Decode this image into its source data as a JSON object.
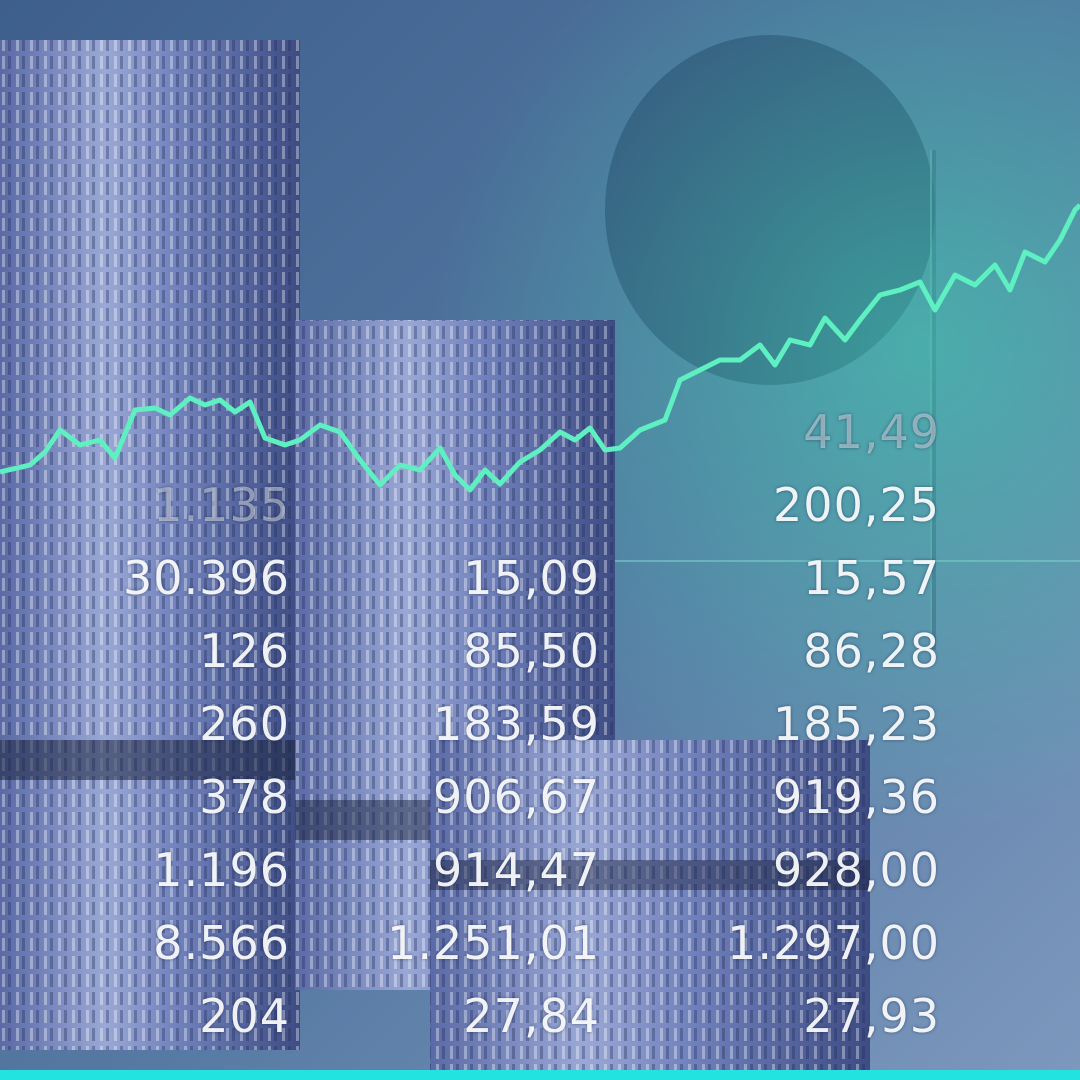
{
  "colors": {
    "background": "#4a6b94",
    "accent_line": "#5ef0c0",
    "bottom_bar": "#22e3df",
    "coin": "#6c7fb8"
  },
  "ticker_columns": [
    {
      "values": [
        "1.135",
        "30.396",
        "126",
        "260",
        "378",
        "1.196",
        "8.566",
        "204"
      ]
    },
    {
      "values": [
        "",
        "15,09",
        "85,50",
        "183,59",
        "906,67",
        "914,47",
        "1.251,01",
        "27,84"
      ]
    },
    {
      "values": [
        "41,49",
        "200,25",
        "15,57",
        "86,28",
        "185,23",
        "919,36",
        "928,00",
        "1.297,00",
        "27,93"
      ]
    }
  ]
}
